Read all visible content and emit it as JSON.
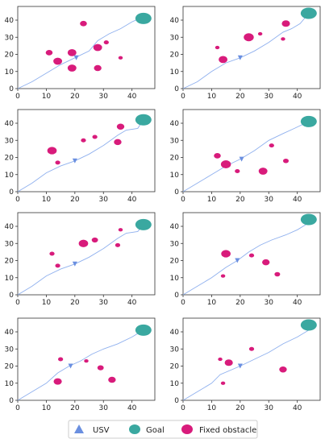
{
  "chart_data": {
    "type": "scatter",
    "grid": false,
    "xlim": [
      0,
      48
    ],
    "ylim": [
      0,
      48
    ],
    "xticks": [
      0,
      10,
      20,
      30,
      40
    ],
    "yticks": [
      0,
      10,
      20,
      30,
      40
    ],
    "legend": {
      "position": "bottom-center",
      "entries": [
        {
          "label": "USV",
          "marker": "triangle",
          "color": "#6a8fe0"
        },
        {
          "label": "Goal",
          "marker": "circle",
          "color": "#3aa8a0"
        },
        {
          "label": "Fixed obstacle",
          "marker": "circle",
          "color": "#d81b7b"
        }
      ]
    },
    "panels": [
      {
        "goal": [
          44,
          41
        ],
        "usv": [
          20.5,
          18
        ],
        "path": [
          [
            0,
            0
          ],
          [
            5,
            4
          ],
          [
            10,
            9
          ],
          [
            15,
            14
          ],
          [
            20,
            18
          ],
          [
            25,
            22
          ],
          [
            28,
            28
          ],
          [
            32,
            32
          ],
          [
            36,
            35
          ],
          [
            40,
            39
          ],
          [
            44,
            42
          ]
        ],
        "obstacles": [
          [
            23,
            38,
            2.2
          ],
          [
            11,
            21,
            2.2
          ],
          [
            14,
            16,
            2.8
          ],
          [
            19,
            21,
            2.8
          ],
          [
            19,
            12,
            2.8
          ],
          [
            28,
            24,
            2.8
          ],
          [
            31,
            27,
            1.6
          ],
          [
            28,
            12,
            2.4
          ],
          [
            36,
            18,
            1.4
          ]
        ]
      },
      {
        "goal": [
          44,
          44
        ],
        "usv": [
          20,
          18
        ],
        "path": [
          [
            0,
            0
          ],
          [
            5,
            4
          ],
          [
            10,
            10
          ],
          [
            15,
            15
          ],
          [
            20,
            18
          ],
          [
            25,
            22
          ],
          [
            30,
            27
          ],
          [
            35,
            33
          ],
          [
            38,
            35
          ],
          [
            41,
            38
          ],
          [
            44,
            44
          ]
        ],
        "obstacles": [
          [
            12,
            24,
            1.4
          ],
          [
            14,
            17,
            2.8
          ],
          [
            23,
            30,
            3.2
          ],
          [
            27,
            32,
            1.4
          ],
          [
            36,
            38,
            2.6
          ],
          [
            35,
            29,
            1.4
          ]
        ]
      },
      {
        "goal": [
          44,
          42
        ],
        "usv": [
          20,
          18
        ],
        "path": [
          [
            0,
            0
          ],
          [
            5,
            5
          ],
          [
            10,
            11
          ],
          [
            15,
            15
          ],
          [
            20,
            18
          ],
          [
            25,
            22
          ],
          [
            30,
            27
          ],
          [
            35,
            33
          ],
          [
            38,
            36
          ],
          [
            42,
            37
          ],
          [
            44,
            42
          ]
        ],
        "obstacles": [
          [
            12,
            24,
            3.0
          ],
          [
            14,
            17,
            1.6
          ],
          [
            23,
            30,
            1.6
          ],
          [
            27,
            32,
            1.6
          ],
          [
            36,
            38,
            2.4
          ],
          [
            35,
            29,
            2.4
          ]
        ]
      },
      {
        "goal": [
          44,
          41
        ],
        "usv": [
          20.5,
          19
        ],
        "path": [
          [
            0,
            0
          ],
          [
            5,
            5
          ],
          [
            10,
            10
          ],
          [
            15,
            15
          ],
          [
            20,
            19
          ],
          [
            25,
            24
          ],
          [
            30,
            30
          ],
          [
            35,
            34
          ],
          [
            39,
            37
          ],
          [
            44,
            41
          ]
        ],
        "obstacles": [
          [
            12,
            21,
            2.2
          ],
          [
            15,
            16,
            3.2
          ],
          [
            19,
            12,
            1.6
          ],
          [
            28,
            12,
            2.8
          ],
          [
            31,
            27,
            1.6
          ],
          [
            36,
            18,
            1.8
          ]
        ]
      },
      {
        "goal": [
          44,
          41
        ],
        "usv": [
          20,
          18
        ],
        "path": [
          [
            0,
            0
          ],
          [
            5,
            5
          ],
          [
            10,
            11
          ],
          [
            15,
            15
          ],
          [
            20,
            18
          ],
          [
            25,
            22
          ],
          [
            30,
            27
          ],
          [
            35,
            33
          ],
          [
            38,
            36
          ],
          [
            42,
            37
          ],
          [
            44,
            41
          ]
        ],
        "obstacles": [
          [
            12,
            24,
            1.6
          ],
          [
            14,
            17,
            1.6
          ],
          [
            23,
            30,
            3.0
          ],
          [
            27,
            32,
            2.0
          ],
          [
            36,
            38,
            1.4
          ],
          [
            35,
            29,
            1.6
          ]
        ]
      },
      {
        "goal": [
          44,
          44
        ],
        "usv": [
          19,
          20
        ],
        "path": [
          [
            0,
            0
          ],
          [
            5,
            5
          ],
          [
            10,
            10
          ],
          [
            15,
            16
          ],
          [
            19,
            20
          ],
          [
            23,
            25
          ],
          [
            27,
            29
          ],
          [
            31,
            32
          ],
          [
            36,
            35
          ],
          [
            40,
            38
          ],
          [
            43,
            41
          ]
        ],
        "obstacles": [
          [
            15,
            24,
            3.0
          ],
          [
            14,
            11,
            1.4
          ],
          [
            24,
            23,
            1.6
          ],
          [
            29,
            19,
            2.4
          ],
          [
            33,
            12,
            1.8
          ]
        ]
      },
      {
        "goal": [
          44,
          41
        ],
        "usv": [
          18.5,
          20
        ],
        "path": [
          [
            0,
            0
          ],
          [
            5,
            5
          ],
          [
            10,
            10
          ],
          [
            14,
            16
          ],
          [
            18,
            20
          ],
          [
            22,
            23
          ],
          [
            26,
            27
          ],
          [
            30,
            30
          ],
          [
            35,
            33
          ],
          [
            40,
            37
          ],
          [
            44,
            41
          ]
        ],
        "obstacles": [
          [
            15,
            24,
            1.6
          ],
          [
            14,
            11,
            2.6
          ],
          [
            24,
            23,
            1.4
          ],
          [
            29,
            19,
            2.0
          ],
          [
            33,
            12,
            2.4
          ]
        ]
      },
      {
        "goal": [
          44,
          44
        ],
        "usv": [
          20,
          20
        ],
        "path": [
          [
            0,
            0
          ],
          [
            5,
            5
          ],
          [
            10,
            10
          ],
          [
            13,
            15
          ],
          [
            20,
            20
          ],
          [
            25,
            24
          ],
          [
            30,
            28
          ],
          [
            35,
            33
          ],
          [
            40,
            37
          ],
          [
            44,
            41
          ]
        ],
        "obstacles": [
          [
            13,
            24,
            1.4
          ],
          [
            16,
            22,
            2.6
          ],
          [
            14,
            10,
            1.4
          ],
          [
            24,
            30,
            1.6
          ],
          [
            35,
            18,
            2.4
          ]
        ]
      }
    ]
  }
}
